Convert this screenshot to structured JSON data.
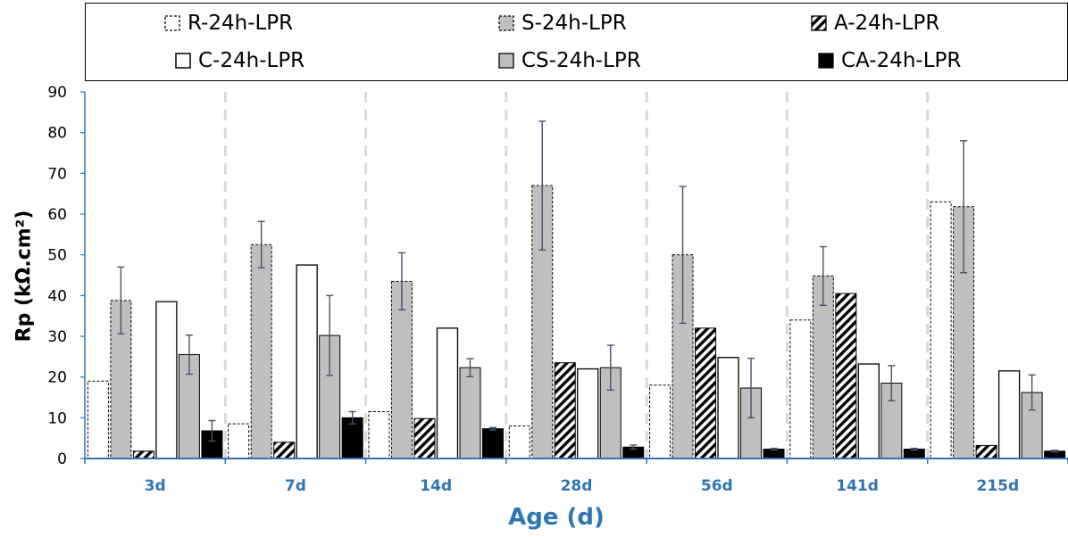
{
  "chart_data": {
    "type": "bar",
    "xlabel": "Age (d)",
    "ylabel": "Rp (kΩ.cm²)",
    "ylim": [
      0,
      90
    ],
    "yticks": [
      0,
      10,
      20,
      30,
      40,
      50,
      60,
      70,
      80,
      90
    ],
    "categories": [
      "3d",
      "7d",
      "14d",
      "28d",
      "56d",
      "141d",
      "215d"
    ],
    "legend_position": "top",
    "series": [
      {
        "name": "R-24h-LPR",
        "style": "dashed-outline",
        "values": [
          19,
          8.5,
          11.5,
          8,
          18,
          34,
          63
        ]
      },
      {
        "name": "S-24h-LPR",
        "style": "gray-dashed",
        "values": [
          38.8,
          52.5,
          43.5,
          67,
          50,
          44.8,
          61.8
        ],
        "errors": [
          8.2,
          5.7,
          7,
          15.8,
          16.8,
          7.2,
          16.2
        ]
      },
      {
        "name": "A-24h-LPR",
        "style": "hatched",
        "values": [
          1.8,
          4,
          9.8,
          23.5,
          32,
          40.5,
          3.2
        ]
      },
      {
        "name": "C-24h-LPR",
        "style": "white",
        "values": [
          38.5,
          47.5,
          32,
          22,
          24.8,
          23.2,
          21.5
        ]
      },
      {
        "name": "CS-24h-LPR",
        "style": "gray",
        "values": [
          25.5,
          30.2,
          22.3,
          22.3,
          17.3,
          18.5,
          16.2
        ],
        "errors": [
          4.8,
          9.8,
          2.2,
          5.5,
          7.3,
          4.3,
          4.3
        ]
      },
      {
        "name": "CA-24h-LPR",
        "style": "black",
        "values": [
          6.8,
          10,
          7.3,
          2.8,
          2.3,
          2.3,
          1.8
        ],
        "errors": [
          2.5,
          1.5,
          0.3,
          0.5,
          0.2,
          0.2,
          0.2
        ]
      }
    ],
    "grid": false,
    "colors": {
      "axis": "#2e75b6",
      "gray": "#bfbfbf",
      "error_bar": "#44546a",
      "separator": "#d9d9d9"
    }
  }
}
